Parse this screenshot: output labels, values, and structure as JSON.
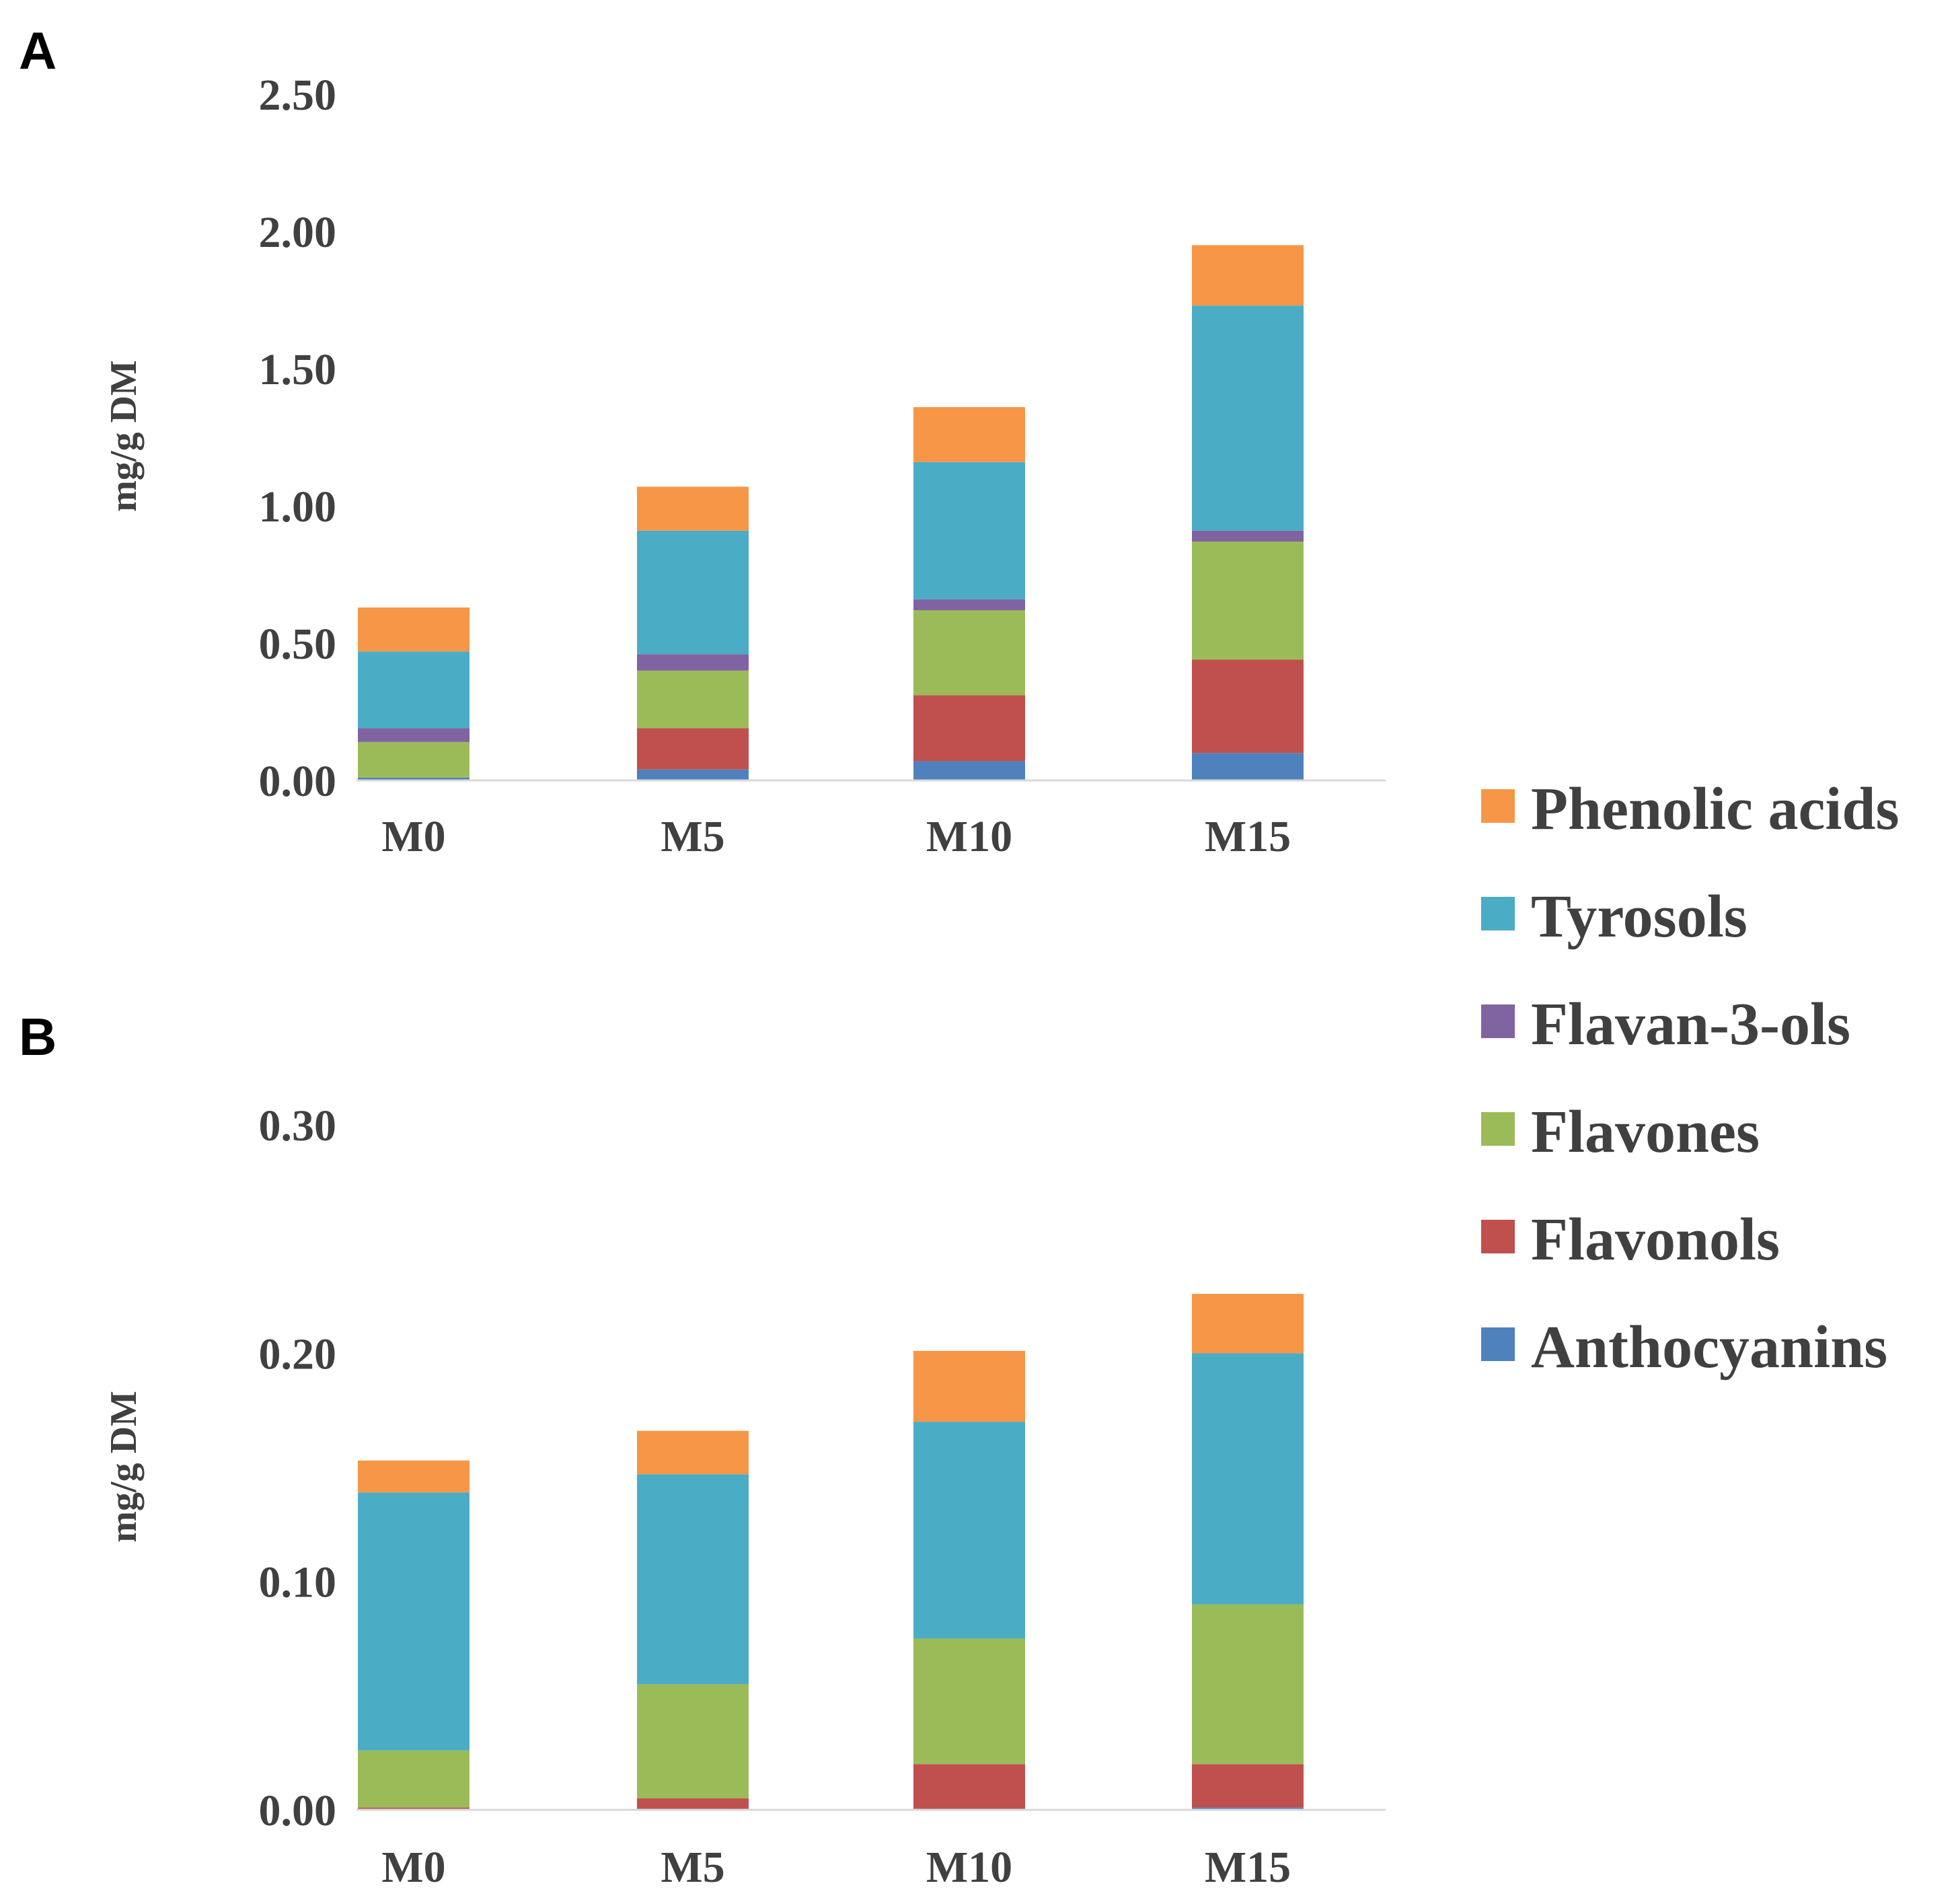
{
  "legend": [
    {
      "name": "Phenolic acids",
      "color": "#f79646"
    },
    {
      "name": "Tyrosols",
      "color": "#4bacc6"
    },
    {
      "name": "Flavan-3-ols",
      "color": "#8064a2"
    },
    {
      "name": "Flavones",
      "color": "#9bbb59"
    },
    {
      "name": "Flavonols",
      "color": "#c0504d"
    },
    {
      "name": "Anthocyanins",
      "color": "#4f81bd"
    }
  ],
  "chart_data": [
    {
      "panel": "A",
      "type": "bar",
      "stacked": true,
      "categories": [
        "M0",
        "M5",
        "M10",
        "M15"
      ],
      "ylabel": "mg/g DM",
      "ylim": [
        0,
        2.5
      ],
      "yticks": [
        "0.00",
        "0.50",
        "1.00",
        "1.50",
        "2.00",
        "2.50"
      ],
      "legend_position": "right",
      "series": [
        {
          "name": "Anthocyanins",
          "color": "#4f81bd",
          "values": [
            0.01,
            0.04,
            0.07,
            0.1
          ]
        },
        {
          "name": "Flavonols",
          "color": "#c0504d",
          "values": [
            0.0,
            0.15,
            0.24,
            0.34
          ]
        },
        {
          "name": "Flavones",
          "color": "#9bbb59",
          "values": [
            0.13,
            0.21,
            0.31,
            0.43
          ]
        },
        {
          "name": "Flavan-3-ols",
          "color": "#8064a2",
          "values": [
            0.05,
            0.06,
            0.04,
            0.04
          ]
        },
        {
          "name": "Tyrosols",
          "color": "#4bacc6",
          "values": [
            0.28,
            0.45,
            0.5,
            0.82
          ]
        },
        {
          "name": "Phenolic acids",
          "color": "#f79646",
          "values": [
            0.16,
            0.16,
            0.2,
            0.22
          ]
        }
      ]
    },
    {
      "panel": "B",
      "type": "bar",
      "stacked": true,
      "categories": [
        "M0",
        "M5",
        "M10",
        "M15"
      ],
      "ylabel": "mg/g DM",
      "ylim": [
        0,
        0.3
      ],
      "yticks": [
        "0.00",
        "0.10",
        "0.20",
        "0.30"
      ],
      "legend_position": "right",
      "series": [
        {
          "name": "Anthocyanins",
          "color": "#4f81bd",
          "values": [
            0.0,
            0.0,
            0.0,
            0.001
          ]
        },
        {
          "name": "Flavonols",
          "color": "#c0504d",
          "values": [
            0.001,
            0.005,
            0.02,
            0.019
          ]
        },
        {
          "name": "Flavones",
          "color": "#9bbb59",
          "values": [
            0.025,
            0.05,
            0.055,
            0.07
          ]
        },
        {
          "name": "Flavan-3-ols",
          "color": "#8064a2",
          "values": [
            0.0,
            0.0,
            0.0,
            0.0
          ]
        },
        {
          "name": "Tyrosols",
          "color": "#4bacc6",
          "values": [
            0.113,
            0.092,
            0.095,
            0.11
          ]
        },
        {
          "name": "Phenolic acids",
          "color": "#f79646",
          "values": [
            0.014,
            0.019,
            0.031,
            0.026
          ]
        }
      ]
    }
  ]
}
